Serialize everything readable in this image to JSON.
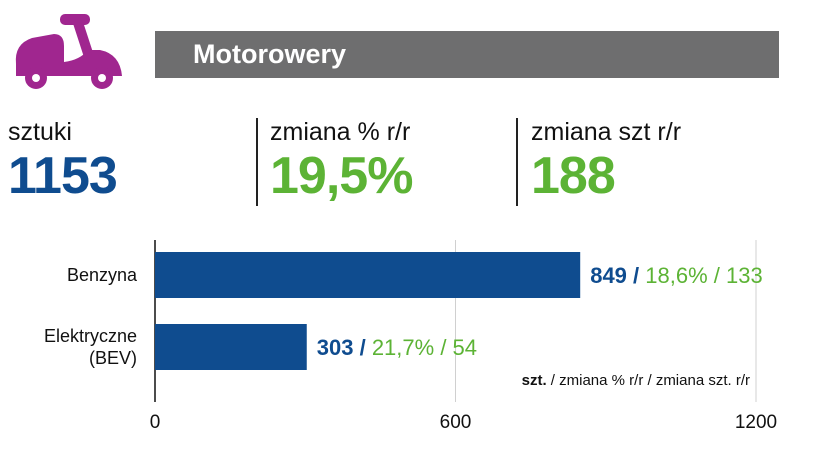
{
  "header": {
    "icon": "scooter-icon",
    "title": "Motorowery"
  },
  "kpis": [
    {
      "label": "sztuki",
      "value": "1153",
      "color": "#0f4c8f"
    },
    {
      "label": "zmiana % r/r",
      "value": "19,5%",
      "color": "#5cb335"
    },
    {
      "label": "zmiana szt r/r",
      "value": "188",
      "color": "#5cb335"
    }
  ],
  "colors": {
    "icon": "#a0268f",
    "title_bar": "#6e6e6f",
    "bar": "#0f4c8f",
    "accent_green": "#5cb335",
    "grid": "#d0d0d0"
  },
  "chart_data": {
    "type": "bar",
    "orientation": "horizontal",
    "categories": [
      [
        "Benzyna"
      ],
      [
        "Elektryczne",
        "(BEV)"
      ]
    ],
    "values": [
      849,
      303
    ],
    "labels": [
      {
        "value": "849",
        "change_pct": "18,6%",
        "change_units": "133"
      },
      {
        "value": "303",
        "change_pct": "21,7%",
        "change_units": "54"
      }
    ],
    "separator": " / ",
    "xlim": [
      0,
      1200
    ],
    "ticks": [
      "0",
      "600",
      "1200"
    ],
    "tick_values": [
      0,
      600,
      1200
    ],
    "grid": true,
    "annotation": {
      "bold": "szt.",
      "rest": " / zmiana % r/r / zmiana szt. r/r"
    }
  }
}
